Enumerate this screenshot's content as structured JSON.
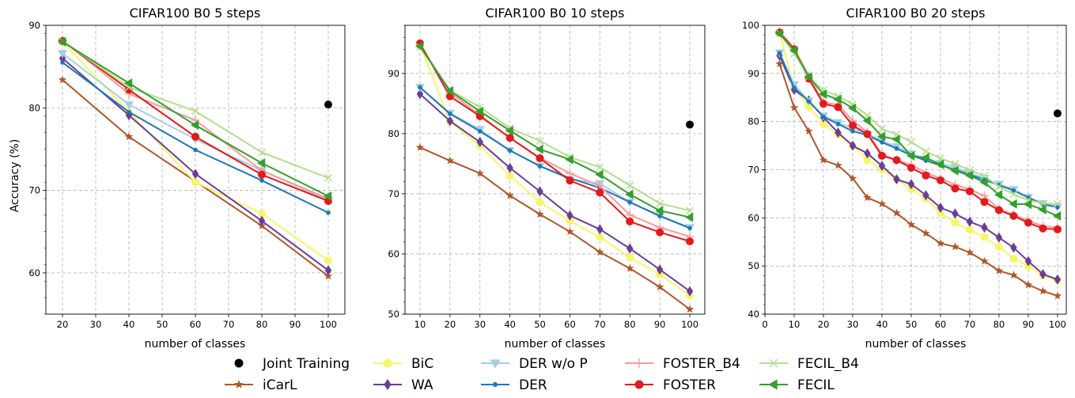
{
  "legend": [
    {
      "key": "joint",
      "label": "Joint Training",
      "color": "#000000",
      "marker": "circle",
      "line": false
    },
    {
      "key": "icarl",
      "label": "iCarL",
      "color": "#b0562a",
      "marker": "star",
      "line": true
    },
    {
      "key": "bic",
      "label": "BiC",
      "color": "#f7f56a",
      "marker": "circle",
      "line": true
    },
    {
      "key": "wa",
      "label": "WA",
      "color": "#6a3d9a",
      "marker": "diamond",
      "line": true
    },
    {
      "key": "der_wop",
      "label": "DER w/o P",
      "color": "#a6cee3",
      "marker": "tri-down",
      "line": true
    },
    {
      "key": "der",
      "label": "DER",
      "color": "#1f78b4",
      "marker": "dot",
      "line": true
    },
    {
      "key": "foster_b4",
      "label": "FOSTER_B4",
      "color": "#fb9a99",
      "marker": "plus",
      "line": true
    },
    {
      "key": "foster",
      "label": "FOSTER",
      "color": "#e31a1c",
      "marker": "circle",
      "line": true
    },
    {
      "key": "fecil_b4",
      "label": "FECIL_B4",
      "color": "#b2df8a",
      "marker": "x",
      "line": true
    },
    {
      "key": "fecil",
      "label": "FECIL",
      "color": "#33a02c",
      "marker": "tri-left",
      "line": true
    }
  ],
  "chart_data": [
    {
      "type": "line",
      "title": "CIFAR100 B0 5 steps",
      "xlabel": "number of classes",
      "ylabel": "Accuracy (%)",
      "xlim": [
        15,
        105
      ],
      "ylim": [
        55,
        90
      ],
      "xticks": [
        20,
        30,
        40,
        50,
        60,
        70,
        80,
        90,
        100
      ],
      "yticks": [
        60,
        70,
        80,
        90
      ],
      "grid": true,
      "x": [
        20,
        40,
        60,
        80,
        100
      ],
      "joint": {
        "x": 100,
        "y": 80.4
      },
      "series": [
        {
          "key": "icarl",
          "values": [
            83.4,
            76.5,
            71.1,
            65.7,
            59.6
          ]
        },
        {
          "key": "bic",
          "values": [
            88.0,
            79.5,
            71.0,
            67.2,
            61.5
          ]
        },
        {
          "key": "wa",
          "values": [
            86.0,
            79.1,
            72.0,
            66.3,
            60.3
          ]
        },
        {
          "key": "der_wop",
          "values": [
            86.6,
            80.4,
            76.2,
            72.4,
            68.8
          ]
        },
        {
          "key": "der",
          "values": [
            85.5,
            79.5,
            74.9,
            71.2,
            67.3
          ]
        },
        {
          "key": "foster_b4",
          "values": [
            88.2,
            81.7,
            78.5,
            72.4,
            69.0
          ]
        },
        {
          "key": "foster",
          "values": [
            88.1,
            82.2,
            76.5,
            71.9,
            68.7
          ]
        },
        {
          "key": "fecil_b4",
          "values": [
            88.1,
            82.5,
            79.6,
            74.6,
            71.5
          ]
        },
        {
          "key": "fecil",
          "values": [
            88.0,
            83.0,
            77.9,
            73.3,
            69.3
          ]
        }
      ]
    },
    {
      "type": "line",
      "title": "CIFAR100 B0 10 steps",
      "xlabel": "number of classes",
      "ylabel": "",
      "xlim": [
        5,
        105
      ],
      "ylim": [
        50,
        98
      ],
      "xticks": [
        10,
        20,
        30,
        40,
        50,
        60,
        70,
        80,
        90,
        100
      ],
      "yticks": [
        50,
        60,
        70,
        80,
        90
      ],
      "grid": true,
      "x": [
        10,
        20,
        30,
        40,
        50,
        60,
        70,
        80,
        90,
        100
      ],
      "joint": {
        "x": 100,
        "y": 81.5
      },
      "series": [
        {
          "key": "icarl",
          "values": [
            77.7,
            75.5,
            73.4,
            69.7,
            66.6,
            63.7,
            60.3,
            57.6,
            54.5,
            50.8
          ]
        },
        {
          "key": "bic",
          "values": [
            94.8,
            82.0,
            78.0,
            73.0,
            68.6,
            65.5,
            62.8,
            59.4,
            56.6,
            53.1
          ]
        },
        {
          "key": "wa",
          "values": [
            86.6,
            82.1,
            78.6,
            74.3,
            70.4,
            66.4,
            64.1,
            60.9,
            57.4,
            53.8
          ]
        },
        {
          "key": "der_wop",
          "values": [
            87.7,
            83.4,
            80.7,
            77.2,
            74.6,
            72.4,
            71.7,
            68.6,
            66.4,
            64.4
          ]
        },
        {
          "key": "der",
          "values": [
            87.7,
            83.3,
            80.4,
            77.2,
            74.6,
            72.6,
            71.0,
            68.6,
            66.3,
            64.3
          ]
        },
        {
          "key": "foster_b4",
          "values": [
            94.9,
            86.8,
            83.1,
            79.3,
            76.0,
            73.4,
            71.3,
            66.5,
            64.4,
            62.9
          ]
        },
        {
          "key": "foster",
          "values": [
            95.0,
            86.2,
            82.9,
            79.3,
            75.9,
            72.2,
            70.2,
            65.4,
            63.6,
            62.1
          ]
        },
        {
          "key": "fecil_b4",
          "values": [
            94.4,
            87.2,
            84.4,
            80.9,
            78.8,
            76.1,
            74.4,
            71.4,
            68.4,
            67.2
          ]
        },
        {
          "key": "fecil",
          "values": [
            94.5,
            87.1,
            83.7,
            80.5,
            77.4,
            75.7,
            73.2,
            69.9,
            67.2,
            66.1
          ]
        }
      ]
    },
    {
      "type": "line",
      "title": "CIFAR100 B0 20 steps",
      "xlabel": "number of classes",
      "ylabel": "",
      "xlim": [
        0,
        103
      ],
      "ylim": [
        40,
        100
      ],
      "xticks": [
        0,
        10,
        20,
        30,
        40,
        50,
        60,
        70,
        80,
        90,
        100
      ],
      "yticks": [
        40,
        50,
        60,
        70,
        80,
        90,
        100
      ],
      "grid": true,
      "x": [
        5,
        10,
        15,
        20,
        25,
        30,
        35,
        40,
        45,
        50,
        55,
        60,
        65,
        70,
        75,
        80,
        85,
        90,
        95,
        100
      ],
      "joint": {
        "x": 100,
        "y": 81.7
      },
      "series": [
        {
          "key": "icarl",
          "values": [
            92.0,
            82.9,
            78.0,
            72.0,
            70.9,
            68.2,
            64.2,
            62.9,
            61.0,
            58.6,
            56.8,
            54.7,
            54.0,
            52.8,
            51.0,
            49.0,
            48.1,
            46.1,
            44.8,
            43.8
          ]
        },
        {
          "key": "bic",
          "values": [
            98.5,
            87.0,
            83.0,
            79.5,
            77.3,
            75.0,
            72.0,
            70.0,
            68.0,
            66.0,
            64.0,
            61.0,
            59.0,
            57.5,
            56.0,
            54.0,
            51.5,
            50.0,
            48.0,
            47.0
          ]
        },
        {
          "key": "wa",
          "values": [
            93.7,
            86.6,
            84.4,
            80.9,
            77.7,
            75.0,
            73.4,
            70.8,
            68.0,
            67.0,
            64.7,
            62.1,
            60.9,
            59.2,
            58.0,
            55.9,
            53.8,
            51.0,
            48.3,
            47.2
          ]
        },
        {
          "key": "der_wop",
          "values": [
            94.3,
            87.7,
            84.3,
            81.2,
            79.8,
            78.6,
            77.4,
            76.0,
            74.8,
            73.3,
            72.2,
            71.3,
            70.5,
            69.3,
            68.2,
            67.0,
            65.9,
            64.3,
            63.0,
            62.3
          ]
        },
        {
          "key": "der",
          "values": [
            94.2,
            87.0,
            84.2,
            81.0,
            79.5,
            78.0,
            77.2,
            75.7,
            74.4,
            73.0,
            71.9,
            70.9,
            70.0,
            69.0,
            67.9,
            66.8,
            65.7,
            64.2,
            62.8,
            62.2
          ]
        },
        {
          "key": "foster_b4",
          "values": [
            98.7,
            95.3,
            89.5,
            84.0,
            83.5,
            80.2,
            77.8,
            73.2,
            72.0,
            71.0,
            69.4,
            68.2,
            66.9,
            65.9,
            64.6,
            61.8,
            60.7,
            59.4,
            58.3,
            58.0
          ]
        },
        {
          "key": "foster",
          "values": [
            98.5,
            95.0,
            88.9,
            83.7,
            83.0,
            79.2,
            77.4,
            72.9,
            72.0,
            70.4,
            68.8,
            67.8,
            66.1,
            65.5,
            63.3,
            61.6,
            60.4,
            59.0,
            57.8,
            57.6
          ]
        },
        {
          "key": "fecil_b4",
          "values": [
            98.4,
            94.1,
            89.3,
            86.5,
            85.3,
            83.6,
            81.3,
            78.5,
            77.3,
            75.8,
            73.8,
            72.4,
            71.2,
            69.9,
            68.7,
            66.5,
            64.9,
            63.7,
            63.0,
            62.9
          ]
        },
        {
          "key": "fecil",
          "values": [
            98.3,
            94.8,
            89.3,
            85.7,
            84.6,
            82.8,
            80.2,
            76.9,
            76.3,
            72.9,
            72.5,
            71.1,
            69.8,
            68.8,
            67.4,
            64.8,
            62.9,
            62.8,
            61.7,
            60.4
          ]
        }
      ]
    }
  ]
}
